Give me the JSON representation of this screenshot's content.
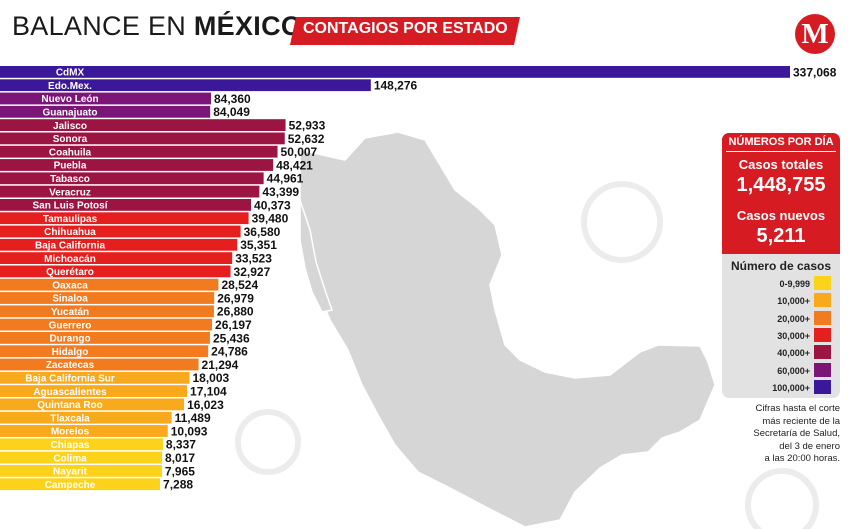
{
  "header": {
    "title_light": "BALANCE EN",
    "title_bold": "MÉXICO",
    "subtitle": "CONTAGIOS POR ESTADO",
    "logo": "M"
  },
  "colors": {
    "brand_red": "#d61b23",
    "dark_grey": "#3a3a3a",
    "map_fill": "#d6d6d6",
    "bins": [
      "#fcd21b",
      "#f9a91c",
      "#f27a1f",
      "#e51e1e",
      "#9c1441",
      "#7b1577",
      "#3a1899"
    ]
  },
  "chart_data": {
    "type": "bar",
    "orientation": "horizontal",
    "categories": [
      "CdMX",
      "Edo.Mex.",
      "Nuevo León",
      "Guanajuato",
      "Jalisco",
      "Sonora",
      "Coahuila",
      "Puebla",
      "Tabasco",
      "Veracruz",
      "San Luis Potosí",
      "Tamaulipas",
      "Chihuahua",
      "Baja California",
      "Michoacán",
      "Querétaro",
      "Oaxaca",
      "Sinaloa",
      "Yucatán",
      "Guerrero",
      "Durango",
      "Hidalgo",
      "Zacatecas",
      "Baja California Sur",
      "Aguascalientes",
      "Quintana Roo",
      "Tlaxcala",
      "Morelos",
      "Chiapas",
      "Colima",
      "Nayarit",
      "Campeche"
    ],
    "values": [
      337068,
      148276,
      84360,
      84049,
      52933,
      52632,
      50007,
      48421,
      44961,
      43399,
      40373,
      39480,
      36580,
      35351,
      33523,
      32927,
      28524,
      26979,
      26880,
      26197,
      25436,
      24786,
      21294,
      18003,
      17104,
      16023,
      11489,
      10093,
      8337,
      8017,
      7965,
      7288
    ],
    "value_labels": [
      "337,068",
      "148,276",
      "84,360",
      "84,049",
      "52,933",
      "52,632",
      "50,007",
      "48,421",
      "44,961",
      "43,399",
      "40,373",
      "39,480",
      "36,580",
      "35,351",
      "33,523",
      "32,927",
      "28,524",
      "26,979",
      "26,880",
      "26,197",
      "25,436",
      "24,786",
      "21,294",
      "18,003",
      "17,104",
      "16,023",
      "11,489",
      "10,093",
      "8,337",
      "8,017",
      "7,965",
      "7,288"
    ],
    "xlim": [
      0,
      337068
    ],
    "grid": false,
    "legend_position": "right"
  },
  "panel": {
    "heading": "NÚMEROS POR DÍA",
    "total_label": "Casos totales",
    "total_value": "1,448,755",
    "new_label": "Casos nuevos",
    "new_value": "5,211",
    "legend_title": "Número de casos",
    "legend": [
      {
        "label": "0-9,999",
        "color": "#fcd21b"
      },
      {
        "label": "10,000+",
        "color": "#f9a91c"
      },
      {
        "label": "20,000+",
        "color": "#f27a1f"
      },
      {
        "label": "30,000+",
        "color": "#e51e1e"
      },
      {
        "label": "40,000+",
        "color": "#9c1441"
      },
      {
        "label": "60,000+",
        "color": "#7b1577"
      },
      {
        "label": "100,000+",
        "color": "#3a1899"
      }
    ]
  },
  "note": {
    "l1": "Cifras hasta el corte",
    "l2": "más reciente de la",
    "l3": "Secretaría de Salud,",
    "l4": "del 3 de enero",
    "l5": "a las 20:00 horas."
  }
}
